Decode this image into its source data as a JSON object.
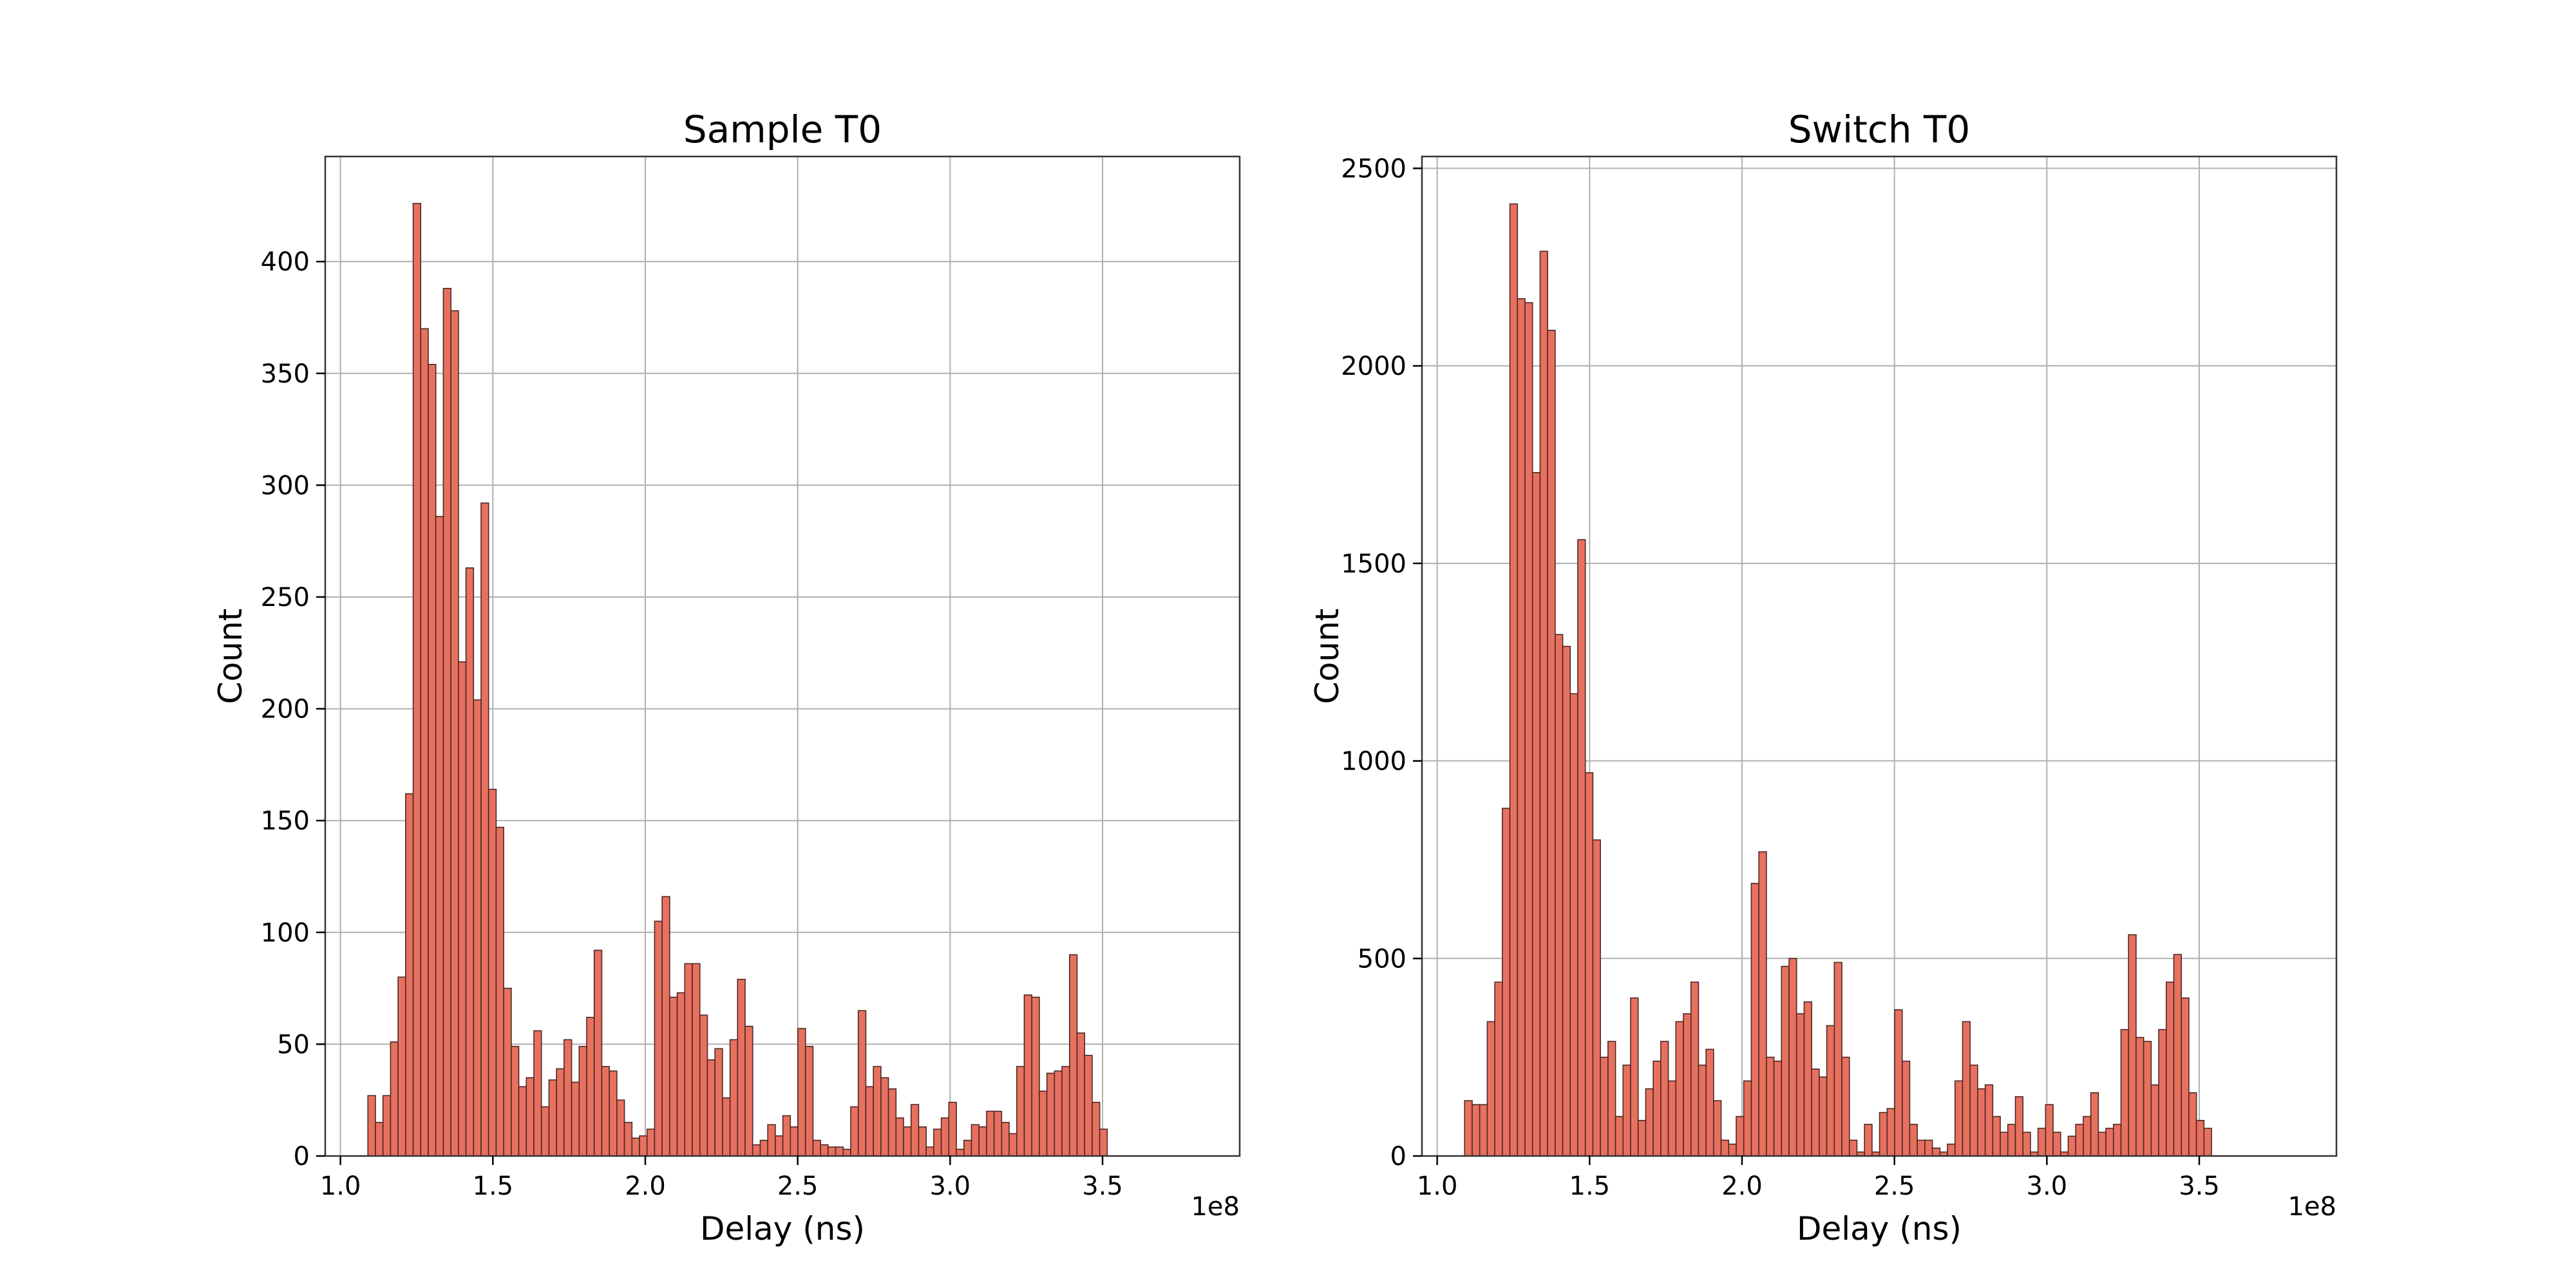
{
  "colors": {
    "bar_fill": "#e8705f",
    "bar_edge": "#4a2a26",
    "grid": "#b0b0b0",
    "frame": "#333333"
  },
  "chart_data": [
    {
      "type": "bar",
      "title": "Sample T0",
      "xlabel": "Delay (ns)",
      "ylabel": "Count",
      "x_offset_label": "1e8",
      "x_tick_values": [
        1.0,
        1.5,
        2.0,
        2.5,
        3.0,
        3.5
      ],
      "x_tick_labels": [
        "1.0",
        "1.5",
        "2.0",
        "2.5",
        "3.0",
        "3.5"
      ],
      "y_tick_values": [
        0,
        50,
        100,
        150,
        200,
        250,
        300,
        350,
        400
      ],
      "y_tick_labels": [
        "0",
        "50",
        "100",
        "150",
        "200",
        "250",
        "300",
        "350",
        "400"
      ],
      "xlim": [
        0.95,
        3.95
      ],
      "ylim": [
        0,
        447
      ],
      "bin_start": 1.09,
      "bin_width": 0.02475,
      "grid": true,
      "values": [
        27,
        15,
        27,
        51,
        80,
        162,
        426,
        370,
        354,
        286,
        388,
        378,
        221,
        263,
        204,
        292,
        164,
        147,
        75,
        49,
        31,
        35,
        56,
        22,
        34,
        39,
        52,
        33,
        49,
        62,
        92,
        40,
        38,
        25,
        15,
        8,
        9,
        12,
        105,
        116,
        71,
        73,
        86,
        86,
        63,
        43,
        48,
        26,
        52,
        79,
        58,
        5,
        7,
        14,
        9,
        18,
        13,
        57,
        49,
        7,
        5,
        4,
        4,
        3,
        22,
        65,
        31,
        40,
        35,
        30,
        17,
        13,
        23,
        13,
        4,
        12,
        17,
        24,
        3,
        7,
        14,
        13,
        20,
        20,
        15,
        10,
        40,
        72,
        71,
        29,
        37,
        38,
        40,
        90,
        55,
        45,
        24,
        12
      ]
    },
    {
      "type": "bar",
      "title": "Switch T0",
      "xlabel": "Delay (ns)",
      "ylabel": "Count",
      "x_offset_label": "1e8",
      "x_tick_values": [
        1.0,
        1.5,
        2.0,
        2.5,
        3.0,
        3.5
      ],
      "x_tick_labels": [
        "1.0",
        "1.5",
        "2.0",
        "2.5",
        "3.0",
        "3.5"
      ],
      "y_tick_values": [
        0,
        500,
        1000,
        1500,
        2000,
        2500
      ],
      "y_tick_labels": [
        "0",
        "500",
        "1000",
        "1500",
        "2000",
        "2500"
      ],
      "xlim": [
        0.95,
        3.95
      ],
      "ylim": [
        0,
        2530
      ],
      "bin_start": 1.09,
      "bin_width": 0.02475,
      "grid": true,
      "values": [
        140,
        130,
        130,
        340,
        440,
        880,
        2410,
        2170,
        2160,
        1730,
        2290,
        2090,
        1320,
        1290,
        1170,
        1560,
        970,
        800,
        250,
        290,
        100,
        230,
        400,
        90,
        170,
        240,
        290,
        190,
        340,
        360,
        440,
        230,
        270,
        140,
        40,
        30,
        100,
        190,
        690,
        770,
        250,
        240,
        480,
        500,
        360,
        390,
        220,
        200,
        330,
        490,
        250,
        40,
        10,
        80,
        10,
        110,
        120,
        370,
        240,
        80,
        40,
        40,
        20,
        10,
        30,
        190,
        340,
        230,
        170,
        180,
        100,
        60,
        80,
        150,
        60,
        10,
        70,
        130,
        60,
        10,
        50,
        80,
        100,
        160,
        60,
        70,
        80,
        320,
        560,
        300,
        290,
        180,
        320,
        440,
        510,
        400,
        160,
        90,
        70
      ]
    }
  ]
}
